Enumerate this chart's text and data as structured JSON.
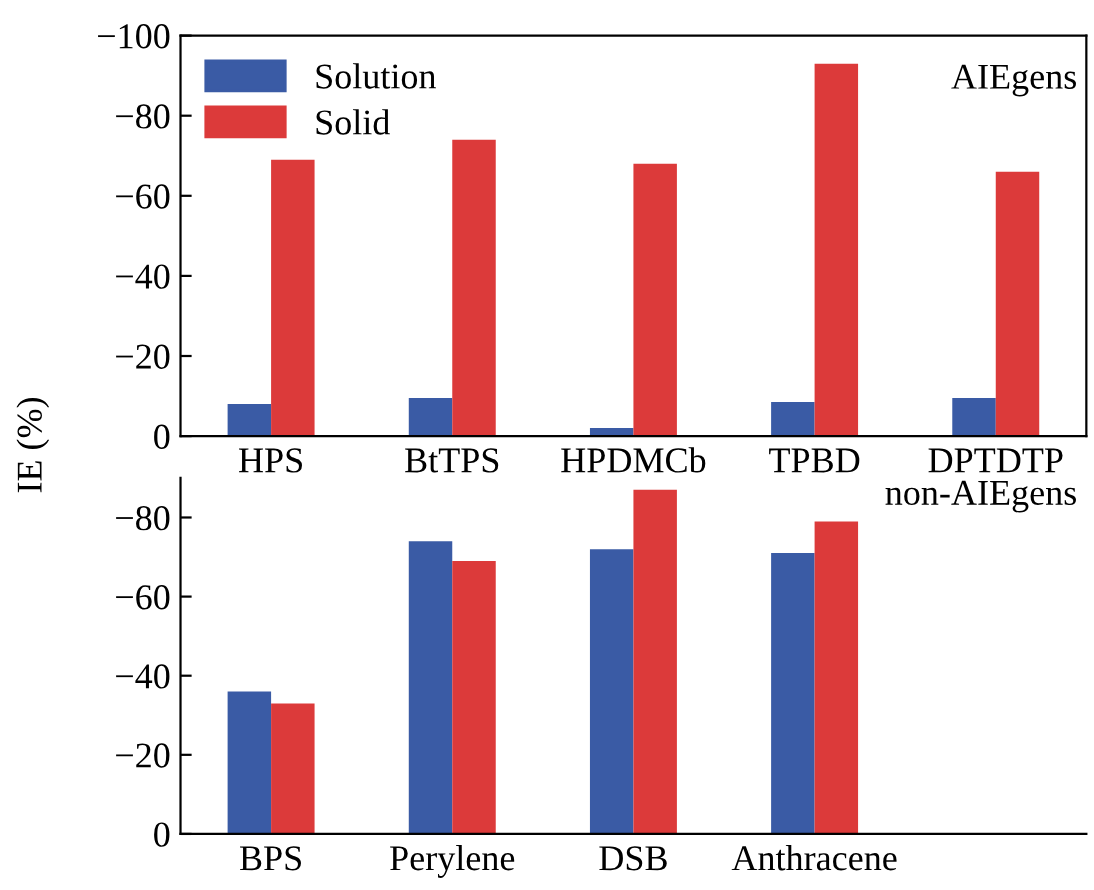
{
  "chart_data": [
    {
      "type": "bar",
      "ylabel": "IE (%)",
      "categories": [
        "HPS",
        "BtTPS",
        "HPDMCb",
        "TPBD",
        "DPTDTP"
      ],
      "series": [
        {
          "name": "Solution",
          "color": "#3a5ba5",
          "values": [
            -8,
            -9.5,
            -2,
            -8.5,
            -9.5
          ]
        },
        {
          "name": "Solid",
          "color": "#dc3a3a",
          "values": [
            -69,
            -74,
            -68,
            -93,
            -66
          ]
        }
      ],
      "ylim": [
        0,
        -100
      ],
      "yticks": [
        {
          "value": -100,
          "label": "−100"
        },
        {
          "value": -80,
          "label": "−80"
        },
        {
          "value": -60,
          "label": "−60"
        },
        {
          "value": -40,
          "label": "−40"
        },
        {
          "value": -20,
          "label": "−20"
        },
        0
      ],
      "legend": "top left",
      "grid": false,
      "annotations": [
        "AIEgens"
      ]
    },
    {
      "type": "bar",
      "categories": [
        "BPS",
        "Perylene",
        "DSB",
        "Anthracene",
        null
      ],
      "series": [
        {
          "color": "#3a5ba5",
          "values": [
            -36,
            -74,
            -72,
            -71,
            null
          ]
        },
        {
          "color": "#dc3a3a",
          "values": [
            -33,
            -69,
            -87,
            -79,
            null
          ]
        }
      ],
      "ylim": [
        0,
        -90
      ],
      "yticks": [
        {
          "value": -80,
          "label": "−80"
        },
        {
          "value": -60,
          "label": "−60"
        },
        {
          "value": -40,
          "label": "−40"
        },
        {
          "value": -20,
          "label": "−20"
        },
        0
      ],
      "grid": false,
      "annotations": [
        "non-AIEgens"
      ]
    }
  ]
}
